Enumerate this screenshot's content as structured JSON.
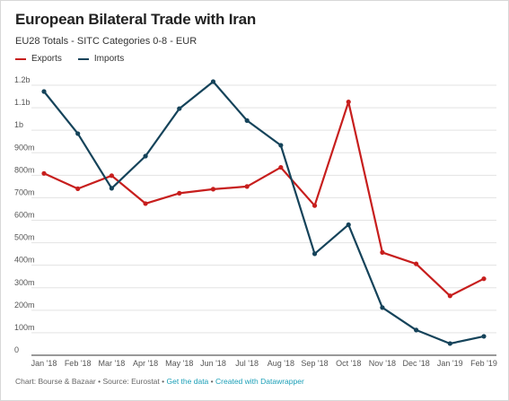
{
  "header": {
    "title": "European Bilateral Trade with Iran",
    "subtitle": "EU28 Totals - SITC Categories 0-8 - EUR"
  },
  "footer": {
    "source_text": "Chart: Bourse & Bazaar • Source: Eurostat •",
    "get_data": "Get the data",
    "separator": "•",
    "created_with": "Created with Datawrapper"
  },
  "colors": {
    "exports": "#c71e1d",
    "imports": "#15435a",
    "link": "#1a9fb7"
  },
  "chart_data": {
    "type": "line",
    "title": "European Bilateral Trade with Iran",
    "subtitle": "EU28 Totals - SITC Categories 0-8 - EUR",
    "categories": [
      "Jan '18",
      "Feb '18",
      "Mar '18",
      "Apr '18",
      "May '18",
      "Jun '18",
      "Jul '18",
      "Aug '18",
      "Sep '18",
      "Oct '18",
      "Nov '18",
      "Dec '18",
      "Jan '19",
      "Feb '19"
    ],
    "series": [
      {
        "name": "Exports",
        "color": "#c71e1d",
        "values": [
          808,
          740,
          798,
          674,
          720,
          738,
          750,
          835,
          665,
          1126,
          457,
          406,
          264,
          340
        ]
      },
      {
        "name": "Imports",
        "color": "#15435a",
        "values": [
          1172,
          985,
          742,
          885,
          1096,
          1216,
          1043,
          933,
          451,
          580,
          212,
          112,
          52,
          84
        ]
      }
    ],
    "y_ticks": [
      0,
      100,
      200,
      300,
      400,
      500,
      600,
      700,
      800,
      900,
      1000,
      1100,
      1200
    ],
    "y_tick_labels": [
      "0",
      "100m",
      "200m",
      "300m",
      "400m",
      "500m",
      "600m",
      "700m",
      "800m",
      "900m",
      "1b",
      "1.1b",
      "1.2b"
    ],
    "y_unit": "EUR millions",
    "ylim": [
      0,
      1200
    ],
    "grid": true,
    "legend": "top-left"
  }
}
